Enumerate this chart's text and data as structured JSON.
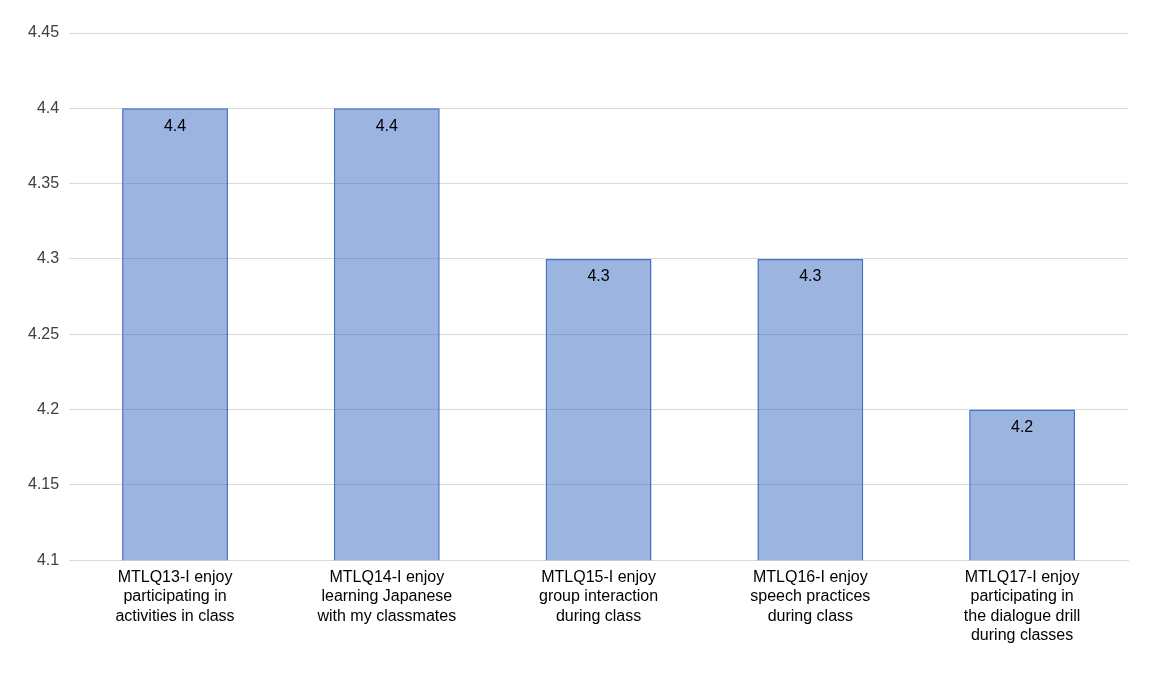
{
  "chart_data": {
    "type": "bar",
    "categories": [
      "MTLQ13-I enjoy participating in activities in class",
      "MTLQ14-I enjoy learning Japanese with my classmates",
      "MTLQ15-I enjoy group interaction during class",
      "MTLQ16-I enjoy speech practices during class",
      "MTLQ17-I enjoy participating in the dialogue drill during classes"
    ],
    "values": [
      4.4,
      4.4,
      4.3,
      4.3,
      4.2
    ],
    "color": "#4472c4",
    "ylim": [
      4.1,
      4.45
    ],
    "yticks": [
      4.1,
      4.15,
      4.2,
      4.25,
      4.3,
      4.35,
      4.4,
      4.45
    ],
    "grid": "y",
    "data_labels": true,
    "legend": false
  }
}
